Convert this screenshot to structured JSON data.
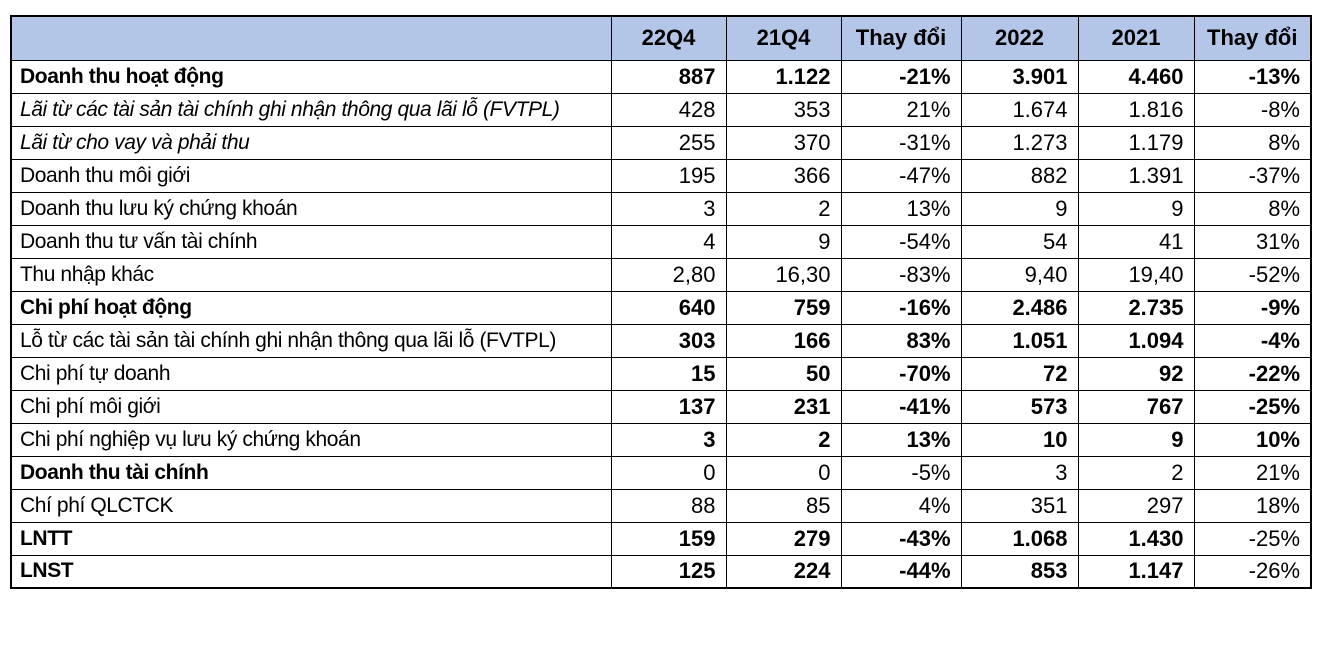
{
  "colors": {
    "header_bg": "#b4c6e7",
    "border": "#000000",
    "text": "#000000"
  },
  "header": {
    "columns": [
      {
        "label": ""
      },
      {
        "label": "22Q4"
      },
      {
        "label": "21Q4"
      },
      {
        "label": "Thay đổi"
      },
      {
        "label": "2022"
      },
      {
        "label": "2021"
      },
      {
        "label": "Thay đổi"
      }
    ]
  },
  "rows": [
    {
      "label": "Doanh thu hoạt động",
      "label_style": "bold",
      "values": [
        "887",
        "1.122",
        "-21%",
        "3.901",
        "4.460",
        "-13%"
      ],
      "value_styles": [
        "bold",
        "bold",
        "bold",
        "bold",
        "bold",
        "bold"
      ]
    },
    {
      "label": "Lãi từ các tài sản tài chính ghi nhận thông qua lãi lỗ (FVTPL)",
      "label_style": "italic",
      "values": [
        "428",
        "353",
        "21%",
        "1.674",
        "1.816",
        "-8%"
      ],
      "value_styles": [
        "normal",
        "normal",
        "normal",
        "normal",
        "normal",
        "normal"
      ]
    },
    {
      "label": "Lãi từ cho vay và phải thu",
      "label_style": "italic",
      "values": [
        "255",
        "370",
        "-31%",
        "1.273",
        "1.179",
        "8%"
      ],
      "value_styles": [
        "normal",
        "normal",
        "normal",
        "normal",
        "normal",
        "normal"
      ]
    },
    {
      "label": "Doanh thu môi giới",
      "label_style": "normal",
      "values": [
        "195",
        "366",
        "-47%",
        "882",
        "1.391",
        "-37%"
      ],
      "value_styles": [
        "normal",
        "normal",
        "normal",
        "normal",
        "normal",
        "normal"
      ]
    },
    {
      "label": "Doanh thu lưu ký chứng khoán",
      "label_style": "normal",
      "values": [
        "3",
        "2",
        "13%",
        "9",
        "9",
        "8%"
      ],
      "value_styles": [
        "normal",
        "normal",
        "normal",
        "normal",
        "normal",
        "normal"
      ]
    },
    {
      "label": "Doanh thu tư vấn tài chính",
      "label_style": "normal",
      "values": [
        "4",
        "9",
        "-54%",
        "54",
        "41",
        "31%"
      ],
      "value_styles": [
        "normal",
        "normal",
        "normal",
        "normal",
        "normal",
        "normal"
      ]
    },
    {
      "label": "Thu nhập khác",
      "label_style": "normal",
      "values": [
        "2,80",
        "16,30",
        "-83%",
        "9,40",
        "19,40",
        "-52%"
      ],
      "value_styles": [
        "normal",
        "normal",
        "normal",
        "normal",
        "normal",
        "normal"
      ]
    },
    {
      "label": "Chi phí hoạt động",
      "label_style": "bold",
      "values": [
        "640",
        "759",
        "-16%",
        "2.486",
        "2.735",
        "-9%"
      ],
      "value_styles": [
        "bold",
        "bold",
        "bold",
        "bold",
        "bold",
        "bold"
      ]
    },
    {
      "label": "Lỗ từ các tài sản tài chính ghi nhận thông qua lãi lỗ (FVTPL)",
      "label_style": "normal",
      "values": [
        "303",
        "166",
        "83%",
        "1.051",
        "1.094",
        "-4%"
      ],
      "value_styles": [
        "bold",
        "bold",
        "bold",
        "bold",
        "bold",
        "bold"
      ]
    },
    {
      "label": "Chi phí tự doanh",
      "label_style": "normal",
      "values": [
        "15",
        "50",
        "-70%",
        "72",
        "92",
        "-22%"
      ],
      "value_styles": [
        "bold",
        "bold",
        "bold",
        "bold",
        "bold",
        "bold"
      ]
    },
    {
      "label": "Chi phí môi giới",
      "label_style": "normal",
      "values": [
        "137",
        "231",
        "-41%",
        "573",
        "767",
        "-25%"
      ],
      "value_styles": [
        "bold",
        "bold",
        "bold",
        "bold",
        "bold",
        "bold"
      ]
    },
    {
      "label": "Chi phí nghiệp vụ lưu ký chứng khoán",
      "label_style": "normal",
      "values": [
        "3",
        "2",
        "13%",
        "10",
        "9",
        "10%"
      ],
      "value_styles": [
        "bold",
        "bold",
        "bold",
        "bold",
        "bold",
        "bold"
      ]
    },
    {
      "label": "Doanh thu tài chính",
      "label_style": "bold",
      "values": [
        "0",
        "0",
        "-5%",
        "3",
        "2",
        "21%"
      ],
      "value_styles": [
        "normal",
        "normal",
        "normal",
        "normal",
        "normal",
        "normal"
      ]
    },
    {
      "label": "Chí phí QLCTCK",
      "label_style": "normal",
      "values": [
        "88",
        "85",
        "4%",
        "351",
        "297",
        "18%"
      ],
      "value_styles": [
        "normal",
        "normal",
        "normal",
        "normal",
        "normal",
        "normal"
      ]
    },
    {
      "label": "LNTT",
      "label_style": "bold",
      "values": [
        "159",
        "279",
        "-43%",
        "1.068",
        "1.430",
        "-25%"
      ],
      "value_styles": [
        "bold",
        "bold",
        "bold",
        "bold",
        "bold",
        "normal"
      ]
    },
    {
      "label": "LNST",
      "label_style": "bold",
      "values": [
        "125",
        "224",
        "-44%",
        "853",
        "1.147",
        "-26%"
      ],
      "value_styles": [
        "bold",
        "bold",
        "bold",
        "bold",
        "bold",
        "normal"
      ]
    }
  ]
}
